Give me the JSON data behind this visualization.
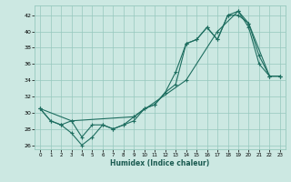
{
  "xlabel": "Humidex (Indice chaleur)",
  "xlim": [
    -0.5,
    23.5
  ],
  "ylim": [
    25.5,
    43.2
  ],
  "yticks": [
    26,
    28,
    30,
    32,
    34,
    36,
    38,
    40,
    42
  ],
  "xticks": [
    0,
    1,
    2,
    3,
    4,
    5,
    6,
    7,
    8,
    9,
    10,
    11,
    12,
    13,
    14,
    15,
    16,
    17,
    18,
    19,
    20,
    21,
    22,
    23
  ],
  "background_color": "#cce8e2",
  "grid_color": "#96c8be",
  "line_color": "#1e6e60",
  "line1_x": [
    0,
    1,
    2,
    3,
    4,
    5,
    6,
    7,
    8,
    9,
    10,
    11,
    12,
    13,
    14,
    15,
    16,
    17,
    18,
    19,
    20,
    21,
    22,
    23
  ],
  "line1_y": [
    30.5,
    29.0,
    28.5,
    29.0,
    27.0,
    28.5,
    28.5,
    28.0,
    28.5,
    29.0,
    30.5,
    31.0,
    32.5,
    33.5,
    38.5,
    39.0,
    40.5,
    39.0,
    42.0,
    42.0,
    41.0,
    37.0,
    34.5,
    34.5
  ],
  "line2_x": [
    0,
    1,
    2,
    3,
    4,
    5,
    6,
    7,
    8,
    9,
    10,
    11,
    12,
    13,
    14,
    15,
    16,
    17,
    18,
    19,
    20,
    21,
    22,
    23
  ],
  "line2_y": [
    30.5,
    29.0,
    28.5,
    27.5,
    26.0,
    27.0,
    28.5,
    28.0,
    28.5,
    29.5,
    30.5,
    31.0,
    32.5,
    35.0,
    38.5,
    39.0,
    40.5,
    39.0,
    42.0,
    42.5,
    40.5,
    36.0,
    34.5,
    34.5
  ],
  "line3_x": [
    0,
    3,
    9,
    14,
    17,
    19,
    20,
    22,
    23
  ],
  "line3_y": [
    30.5,
    29.0,
    29.5,
    34.0,
    40.0,
    42.5,
    41.0,
    34.5,
    34.5
  ]
}
